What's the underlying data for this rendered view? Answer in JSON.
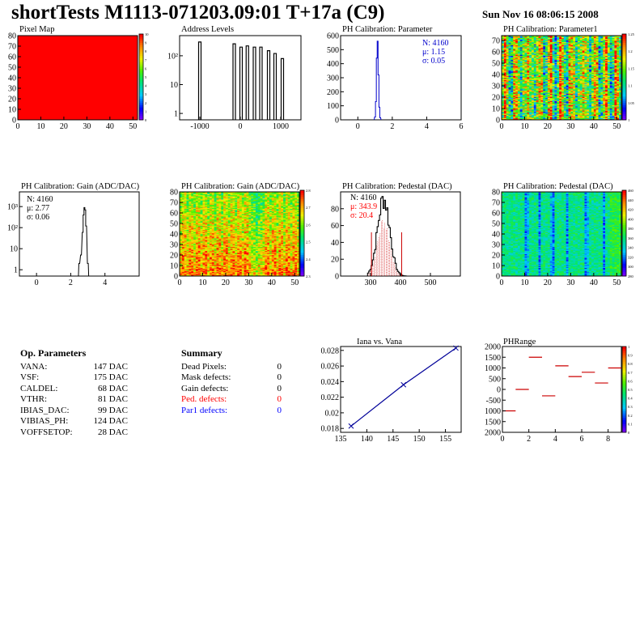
{
  "header": {
    "title": "shortTests M1113-071203.09:01 T+17a (C9)",
    "timestamp": "Sun Nov 16 08:06:15 2008"
  },
  "panels": {
    "pixel_map": {
      "title": "Pixel Map",
      "x_ticks": [
        "0",
        "10",
        "20",
        "30",
        "40",
        "50"
      ],
      "y_ticks": [
        "0",
        "10",
        "20",
        "30",
        "40",
        "50",
        "60",
        "70",
        "80"
      ],
      "palette_ticks": [
        "0",
        "1",
        "2",
        "3",
        "4",
        "5",
        "6",
        "7",
        "8",
        "9",
        "10"
      ]
    },
    "address_levels": {
      "title": "Address Levels",
      "x_ticks": [
        "-1000",
        "0",
        "1000"
      ],
      "y_ticks": [
        "1",
        "10",
        "10²"
      ]
    },
    "ph_param": {
      "title": "PH Calibration: Parameter",
      "x_ticks": [
        "0",
        "2",
        "4",
        "6"
      ],
      "y_ticks": [
        "0",
        "100",
        "200",
        "300",
        "400",
        "500",
        "600"
      ],
      "stats": {
        "n": "N: 4160",
        "mu": "μ: 1.15",
        "sigma": "σ: 0.05"
      }
    },
    "ph_param1": {
      "title": "PH Calibration: Parameter1",
      "x_ticks": [
        "0",
        "10",
        "20",
        "30",
        "40",
        "50"
      ],
      "y_ticks": [
        "0",
        "10",
        "20",
        "30",
        "40",
        "50",
        "60",
        "70"
      ],
      "palette_ticks": [
        "1",
        "1.05",
        "1.1",
        "1.15",
        "1.2",
        "1.25"
      ]
    },
    "ph_gain_hist": {
      "title": "PH Calibration: Gain (ADC/DAC)",
      "x_ticks": [
        "0",
        "2",
        "4"
      ],
      "y_ticks": [
        "1",
        "10",
        "10²",
        "10³"
      ],
      "stats": {
        "n": "N: 4160",
        "mu": "μ: 2.77",
        "sigma": "σ: 0.06"
      }
    },
    "ph_gain_map": {
      "title": "PH Calibration: Gain (ADC/DAC)",
      "x_ticks": [
        "0",
        "10",
        "20",
        "30",
        "40",
        "50"
      ],
      "y_ticks": [
        "0",
        "10",
        "20",
        "30",
        "40",
        "50",
        "60",
        "70",
        "80"
      ],
      "palette_ticks": [
        "2.3",
        "2.4",
        "2.5",
        "2.6",
        "2.7",
        "2.8"
      ]
    },
    "ph_ped_hist": {
      "title": "PH Calibration: Pedestal (DAC)",
      "x_ticks": [
        "300",
        "400",
        "500"
      ],
      "y_ticks": [
        "0",
        "20",
        "40",
        "60",
        "80"
      ],
      "stats": {
        "n": "N: 4160",
        "mu": "μ: 343.9",
        "sigma": "σ: 20.4"
      }
    },
    "ph_ped_map": {
      "title": "PH Calibration: Pedestal (DAC)",
      "x_ticks": [
        "0",
        "10",
        "20",
        "30",
        "40",
        "50"
      ],
      "y_ticks": [
        "0",
        "10",
        "20",
        "30",
        "40",
        "50",
        "60",
        "70",
        "80"
      ],
      "palette_ticks": [
        "280",
        "300",
        "320",
        "340",
        "360",
        "380",
        "400",
        "420",
        "440",
        "460"
      ]
    },
    "iana_vana": {
      "title": "Iana vs. Vana",
      "x_ticks": [
        "135",
        "140",
        "145",
        "150",
        "155"
      ],
      "y_ticks": [
        "0.018",
        "0.02",
        "0.022",
        "0.024",
        "0.026",
        "0.028"
      ]
    },
    "phrange": {
      "title": "PHRange",
      "x_ticks": [
        "0",
        "2",
        "4",
        "6",
        "8"
      ],
      "y_ticks": [
        "2000",
        "1500",
        "1000",
        "500",
        "0",
        "-500",
        "1000",
        "1500",
        "2000"
      ],
      "palette_ticks": [
        "0",
        "0.1",
        "0.2",
        "0.3",
        "0.4",
        "0.5",
        "0.6",
        "0.7",
        "0.8",
        "0.9",
        "1"
      ]
    }
  },
  "op_parameters": {
    "title": "Op. Parameters",
    "rows": [
      {
        "name": "VANA:",
        "value": "147 DAC"
      },
      {
        "name": "VSF:",
        "value": "175 DAC"
      },
      {
        "name": "CALDEL:",
        "value": "68 DAC"
      },
      {
        "name": "VTHR:",
        "value": "81 DAC"
      },
      {
        "name": "IBIAS_DAC:",
        "value": "99 DAC"
      },
      {
        "name": "VIBIAS_PH:",
        "value": "124 DAC"
      },
      {
        "name": "VOFFSETOP:",
        "value": "28 DAC"
      }
    ]
  },
  "summary": {
    "title": "Summary",
    "rows": [
      {
        "name": "Dead Pixels:",
        "value": "0",
        "color": "#000000"
      },
      {
        "name": "Mask defects:",
        "value": "0",
        "color": "#000000"
      },
      {
        "name": "Gain defects:",
        "value": "0",
        "color": "#000000"
      },
      {
        "name": "Ped. defects:",
        "value": "0",
        "color": "#ff0000"
      },
      {
        "name": "Par1 defects:",
        "value": "0",
        "color": "#0000ff"
      }
    ]
  },
  "chart_data": [
    {
      "type": "heatmap",
      "title": "Pixel Map",
      "xlim": [
        0,
        52
      ],
      "ylim": [
        0,
        80
      ],
      "zlim": [
        0,
        10
      ],
      "uniform_value": 10
    },
    {
      "type": "bar",
      "title": "Address Levels",
      "xlim": [
        -1500,
        1500
      ],
      "yscale": "log",
      "x": [
        -1000,
        -150,
        20,
        175,
        350,
        510,
        700,
        860,
        1040
      ],
      "values": [
        300,
        260,
        200,
        220,
        200,
        200,
        150,
        120,
        80
      ]
    },
    {
      "type": "bar",
      "title": "PH Calibration: Parameter",
      "xlim": [
        -1,
        6
      ],
      "ylim": [
        0,
        600
      ],
      "x": [
        1.0,
        1.05,
        1.1,
        1.15,
        1.2,
        1.25,
        1.3
      ],
      "values": [
        20,
        130,
        440,
        560,
        320,
        90,
        15
      ]
    },
    {
      "type": "heatmap",
      "title": "PH Calibration: Parameter1",
      "xlim": [
        0,
        52
      ],
      "ylim": [
        0,
        80
      ],
      "zlim": [
        1.0,
        1.3
      ]
    },
    {
      "type": "bar",
      "title": "PH Calibration: Gain (ADC/DAC)",
      "xlim": [
        -1,
        6
      ],
      "yscale": "log",
      "x": [
        2.5,
        2.6,
        2.7,
        2.75,
        2.8,
        2.85,
        2.9,
        3.0
      ],
      "values": [
        2,
        5,
        60,
        400,
        900,
        700,
        120,
        2
      ]
    },
    {
      "type": "heatmap",
      "title": "PH Calibration: Gain (ADC/DAC)",
      "xlim": [
        0,
        52
      ],
      "ylim": [
        0,
        80
      ],
      "zlim": [
        2.3,
        2.8
      ]
    },
    {
      "type": "bar",
      "title": "PH Calibration: Pedestal (DAC)",
      "xlim": [
        200,
        600
      ],
      "ylim": [
        0,
        100
      ],
      "mean": 343.9,
      "sigma": 20.4,
      "count": 4160,
      "cut_lines": [
        303,
        404
      ]
    },
    {
      "type": "heatmap",
      "title": "PH Calibration: Pedestal (DAC)",
      "xlim": [
        0,
        52
      ],
      "ylim": [
        0,
        80
      ],
      "zlim": [
        280,
        460
      ]
    },
    {
      "type": "line",
      "title": "Iana vs. Vana",
      "xlim": [
        135,
        158
      ],
      "ylim": [
        0.0175,
        0.0285
      ],
      "x": [
        137,
        147,
        157
      ],
      "values": [
        0.0183,
        0.0236,
        0.0283
      ]
    },
    {
      "type": "scatter",
      "title": "PHRange",
      "xlim": [
        0,
        9
      ],
      "ylim": [
        -2000,
        2000
      ],
      "x": [
        0.5,
        1.5,
        2.5,
        3.5,
        4.5,
        5.5,
        6.5,
        7.5,
        8.5
      ],
      "values": [
        -1000,
        0,
        1500,
        -300,
        1100,
        600,
        800,
        300,
        1000
      ]
    }
  ]
}
